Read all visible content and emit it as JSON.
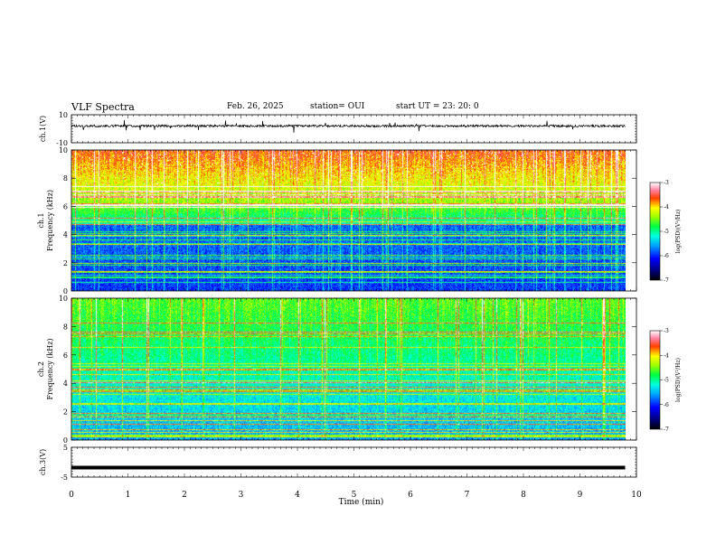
{
  "header": {
    "title": "VLF Spectra",
    "date": "Feb. 26, 2025",
    "station": "station= OUI",
    "start_ut": "start  UT  =   23: 20: 0"
  },
  "colors": {
    "colormap": [
      "#000080",
      "#0000ff",
      "#0080ff",
      "#00e0ff",
      "#00ff80",
      "#80ff00",
      "#ffff00",
      "#ff8000",
      "#ff0000",
      "#ff80c0",
      "#ffffff"
    ]
  },
  "chart_data": [
    {
      "type": "line",
      "name": "ch1-waveform",
      "ylabel": "ch.1(V)",
      "ylim": [
        -10,
        10
      ],
      "y_ticks": [
        "10",
        "-10"
      ],
      "x_range_min": [
        0,
        9.8
      ],
      "description_values": "noisy waveform centered near 2 V with spikes to about ±6 V"
    },
    {
      "type": "heatmap",
      "name": "ch1-spectrogram",
      "ylabel": "ch.1\nFrequency (kHz)",
      "ylabel_lines": [
        "ch.1",
        "Frequency (kHz)"
      ],
      "ylim": [
        0,
        10
      ],
      "y_ticks": [
        "0",
        "2",
        "4",
        "6",
        "8",
        "10"
      ],
      "x_range_min": [
        0,
        9.8
      ],
      "colorbar": {
        "label": "log(PSD)(V²/Hz)",
        "range": [
          -7,
          -3
        ],
        "ticks": [
          "-3",
          "-4",
          "-5",
          "-6",
          "-7"
        ]
      }
    },
    {
      "type": "heatmap",
      "name": "ch2-spectrogram",
      "ylabel": "ch.2\nFrequency (kHz)",
      "ylabel_lines": [
        "ch.2",
        "Frequency (kHz)"
      ],
      "ylim": [
        0,
        10
      ],
      "y_ticks": [
        "0",
        "2",
        "4",
        "6",
        "8",
        "10"
      ],
      "x_range_min": [
        0,
        9.8
      ],
      "colorbar": {
        "label": "log(PSD)(V²/Hz)",
        "range": [
          -7,
          -3
        ],
        "ticks": [
          "-3",
          "-4",
          "-5",
          "-6",
          "-7"
        ]
      }
    },
    {
      "type": "line",
      "name": "ch3-waveform",
      "ylabel": "ch.3(V)",
      "ylim": [
        -5,
        5
      ],
      "y_ticks": [
        "5",
        "-5"
      ],
      "x_range_min": [
        0,
        9.8
      ],
      "values": [
        -1.8,
        -1.8
      ]
    }
  ],
  "x_axis": {
    "label": "Time (min)",
    "lim": [
      0,
      10
    ],
    "ticks": [
      "0",
      "1",
      "2",
      "3",
      "4",
      "5",
      "6",
      "7",
      "8",
      "9",
      "10"
    ]
  }
}
